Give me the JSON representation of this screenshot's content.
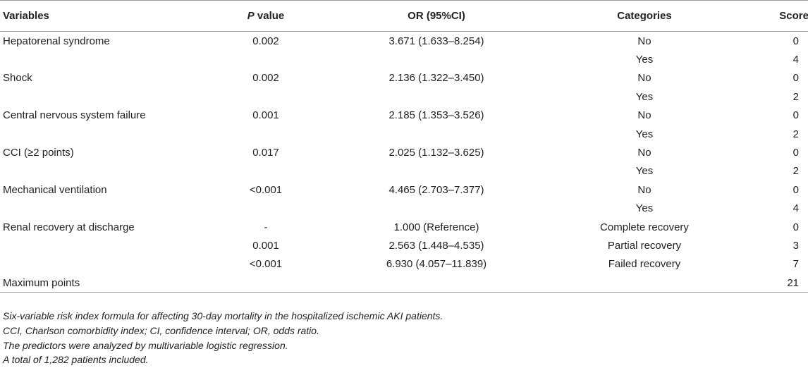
{
  "table": {
    "headers": {
      "variables": "Variables",
      "p_italic": "P",
      "p_rest": " value",
      "or": "OR (95%CI)",
      "categories": "Categories",
      "score": "Score"
    },
    "rows": [
      {
        "variable": "Hepatorenal syndrome",
        "p": "0.002",
        "or": "3.671 (1.633–8.254)",
        "category": "No",
        "score": "0"
      },
      {
        "variable": "",
        "p": "",
        "or": "",
        "category": "Yes",
        "score": "4"
      },
      {
        "variable": "Shock",
        "p": "0.002",
        "or": "2.136 (1.322–3.450)",
        "category": "No",
        "score": "0"
      },
      {
        "variable": "",
        "p": "",
        "or": "",
        "category": "Yes",
        "score": "2"
      },
      {
        "variable": "Central nervous system failure",
        "p": "0.001",
        "or": "2.185 (1.353–3.526)",
        "category": "No",
        "score": "0"
      },
      {
        "variable": "",
        "p": "",
        "or": "",
        "category": "Yes",
        "score": "2"
      },
      {
        "variable": "CCI (≥2 points)",
        "p": "0.017",
        "or": "2.025 (1.132–3.625)",
        "category": "No",
        "score": "0"
      },
      {
        "variable": "",
        "p": "",
        "or": "",
        "category": "Yes",
        "score": "2"
      },
      {
        "variable": "Mechanical ventilation",
        "p": "<0.001",
        "or": "4.465 (2.703–7.377)",
        "category": "No",
        "score": "0"
      },
      {
        "variable": "",
        "p": "",
        "or": "",
        "category": "Yes",
        "score": "4"
      },
      {
        "variable": "Renal recovery at discharge",
        "p": "-",
        "or": "1.000 (Reference)",
        "category": "Complete recovery",
        "score": "0"
      },
      {
        "variable": "",
        "p": "0.001",
        "or": "2.563 (1.448–4.535)",
        "category": "Partial recovery",
        "score": "3"
      },
      {
        "variable": "",
        "p": "<0.001",
        "or": "6.930 (4.057–11.839)",
        "category": "Failed recovery",
        "score": "7"
      },
      {
        "variable": "Maximum points",
        "p": "",
        "or": "",
        "category": "",
        "score": "21"
      }
    ]
  },
  "footnotes": [
    "Six-variable risk index formula for affecting 30-day mortality in the hospitalized ischemic AKI patients.",
    "CCI, Charlson comorbidity index; CI, confidence interval; OR, odds ratio.",
    "The predictors were analyzed by multivariable logistic regression.",
    "A total of 1,282 patients included."
  ]
}
